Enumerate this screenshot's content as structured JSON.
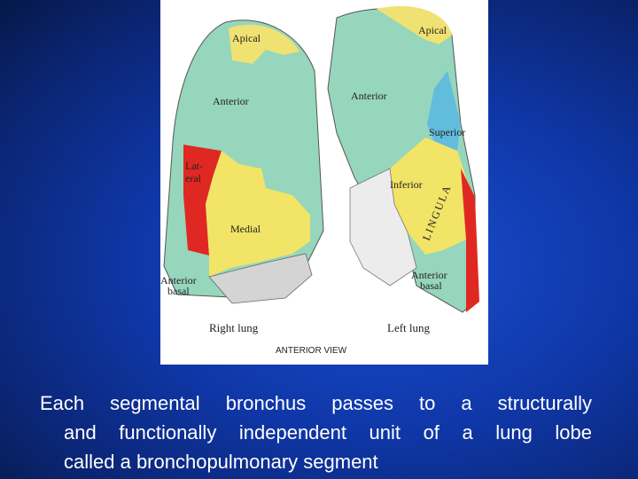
{
  "figure": {
    "right_lung": {
      "apical": "Apical",
      "anterior": "Anterior",
      "lateral": [
        "Lat-",
        "eral"
      ],
      "medial": "Medial",
      "anterior_basal": [
        "Anterior",
        "basal"
      ],
      "name": "Right lung"
    },
    "left_lung": {
      "apical": "Apical",
      "anterior": "Anterior",
      "superior": "Superior",
      "inferior": "Inferior",
      "lingula": "LINGULA",
      "anterior_basal": [
        "Anterior",
        "basal"
      ],
      "name": "Left lung"
    },
    "view": "ANTERIOR VIEW"
  },
  "caption": {
    "lines": [
      "Each segmental bronchus passes to a structurally",
      "and functionally independent unit of a lung lobe",
      "called a bronchopulmonary segment"
    ]
  }
}
